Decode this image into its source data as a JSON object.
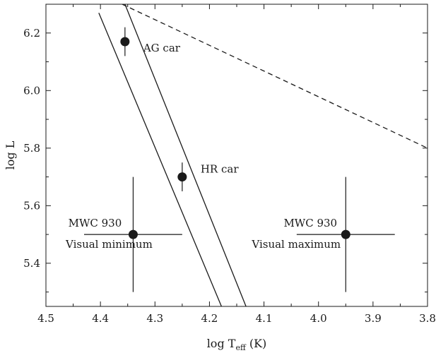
{
  "chart_data": {
    "type": "scatter",
    "xlabel": "log T",
    "xlabel_sub": "eff",
    "xlabel_unit": " (K)",
    "ylabel": "log L",
    "xlim": [
      4.5,
      3.8
    ],
    "ylim": [
      5.25,
      6.3
    ],
    "x_reversed": true,
    "grid": false,
    "xticks": [
      4.5,
      4.4,
      4.3,
      4.2,
      4.1,
      4.0,
      3.9,
      3.8
    ],
    "xtick_labels": [
      "4.5",
      "4.4",
      "4.3",
      "4.2",
      "4.1",
      "4.0",
      "3.9",
      "3.8"
    ],
    "yticks": [
      5.4,
      5.6,
      5.8,
      6.0,
      6.2
    ],
    "ytick_labels": [
      "5.4",
      "5.6",
      "5.8",
      "6.0",
      "6.2"
    ],
    "points": [
      {
        "x": 4.355,
        "y": 6.17,
        "yerr": 0.05,
        "xerr": 0,
        "label": "AG car"
      },
      {
        "x": 4.25,
        "y": 5.7,
        "yerr": 0.05,
        "xerr": 0,
        "label": "HR car"
      },
      {
        "x": 4.34,
        "y": 5.5,
        "yerr": 0.2,
        "xerr": 0.09,
        "label_line1": "MWC 930",
        "label_line2": "Visual minimum"
      },
      {
        "x": 3.95,
        "y": 5.5,
        "yerr": 0.2,
        "xerr": 0.09,
        "label_line1": "MWC 930",
        "label_line2": "Visual maximum"
      }
    ],
    "lines": [
      {
        "style": "solid",
        "points": [
          [
            4.403,
            6.27
          ],
          [
            4.178,
            5.25
          ]
        ]
      },
      {
        "style": "solid",
        "points": [
          [
            4.355,
            6.3
          ],
          [
            4.133,
            5.25
          ]
        ]
      },
      {
        "style": "dashed",
        "points": [
          [
            4.36,
            6.3
          ],
          [
            3.8,
            5.8
          ]
        ]
      }
    ]
  }
}
